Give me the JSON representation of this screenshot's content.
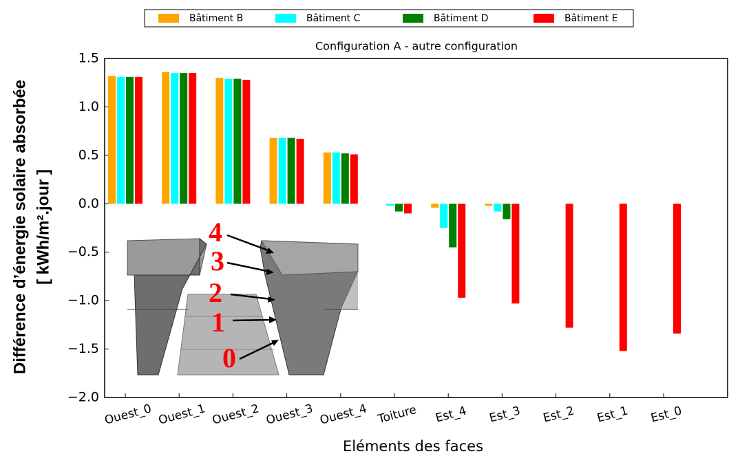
{
  "chart_data": {
    "type": "bar",
    "title": "Configuration A - autre configuration",
    "x_label": "Eléments des faces",
    "y_label": [
      "Différence d’énergie solaire absorbée",
      "[ kWh/m².jour ]"
    ],
    "categories": [
      "Ouest_0",
      "Ouest_1",
      "Ouest_2",
      "Ouest_3",
      "Ouest_4",
      "Toiture",
      "Est_4",
      "Est_3",
      "Est_2",
      "Est_1",
      "Est_0"
    ],
    "series": [
      {
        "name": "Bâtiment B",
        "color": "#ffa500",
        "values": [
          1.32,
          1.36,
          1.3,
          0.68,
          0.53,
          0,
          -0.04,
          -0.02,
          0,
          0,
          0
        ]
      },
      {
        "name": "Bâtiment C",
        "color": "#00ffff",
        "values": [
          1.31,
          1.35,
          1.29,
          0.68,
          0.53,
          -0.02,
          -0.25,
          -0.08,
          0,
          0,
          0
        ]
      },
      {
        "name": "Bâtiment D",
        "color": "#008000",
        "values": [
          1.31,
          1.35,
          1.29,
          0.68,
          0.52,
          -0.08,
          -0.45,
          -0.16,
          0,
          0,
          0
        ]
      },
      {
        "name": "Bâtiment E",
        "color": "#ff0000",
        "values": [
          1.31,
          1.35,
          1.28,
          0.67,
          0.51,
          -0.1,
          -0.97,
          -1.03,
          -1.28,
          -1.52,
          -1.34
        ]
      }
    ],
    "ylim": [
      -2.0,
      1.5
    ],
    "yticks": [
      {
        "value": -2.0,
        "label": "−2.0"
      },
      {
        "value": -1.5,
        "label": "−1.5"
      },
      {
        "value": -1.0,
        "label": "−1.0"
      },
      {
        "value": -0.5,
        "label": "−0.5"
      },
      {
        "value": 0.0,
        "label": "0.0"
      },
      {
        "value": 0.5,
        "label": "0.5"
      },
      {
        "value": 1.0,
        "label": "1.0"
      },
      1.5
    ],
    "grid": false,
    "legend": "top",
    "inset_labels": [
      "4",
      "3",
      "2",
      "1",
      "0"
    ]
  }
}
